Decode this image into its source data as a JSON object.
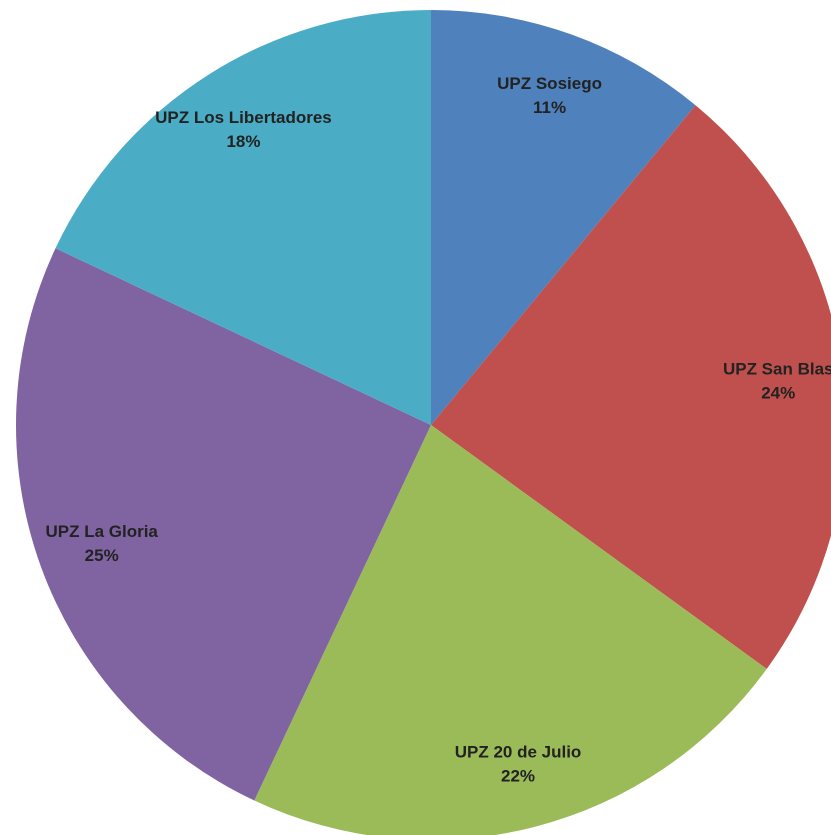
{
  "chart_data": {
    "type": "pie",
    "categories": [
      "UPZ Sosiego",
      "UPZ San Blas",
      "UPZ 20 de Julio",
      "UPZ La Gloria",
      "UPZ Los Libertadores"
    ],
    "values": [
      11,
      24,
      22,
      25,
      18
    ],
    "value_labels": [
      "11%",
      "24%",
      "22%",
      "25%",
      "18%"
    ],
    "colors": [
      "#4f81bd",
      "#c0504d",
      "#9bbb59",
      "#8064a2",
      "#4bacc6"
    ]
  }
}
